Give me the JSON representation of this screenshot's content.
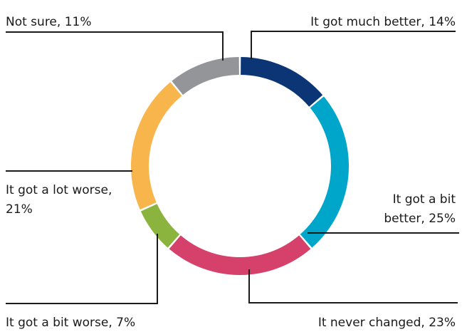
{
  "chart_data": {
    "type": "pie",
    "style": "donut",
    "slices": [
      {
        "label": "It got much better",
        "value": 14,
        "color": "#0b3575",
        "text": "It got much better, 14%"
      },
      {
        "label": "It got a bit better",
        "value": 25,
        "color": "#00a6c9",
        "text": [
          "It got a bit",
          "better, 25%"
        ]
      },
      {
        "label": "It never changed",
        "value": 23,
        "color": "#d5416a",
        "text": "It never changed, 23%"
      },
      {
        "label": "It got a bit worse",
        "value": 7,
        "color": "#8bb43e",
        "text": "It got a bit worse, 7%"
      },
      {
        "label": "It got a lot worse",
        "value": 21,
        "color": "#f7b54b",
        "text": [
          "It got a lot worse,",
          "21%"
        ]
      },
      {
        "label": "Not sure",
        "value": 11,
        "color": "#939598",
        "text": "Not sure, 11%"
      }
    ],
    "title": "",
    "legend": "none",
    "label_color": "#1a1a1a"
  }
}
